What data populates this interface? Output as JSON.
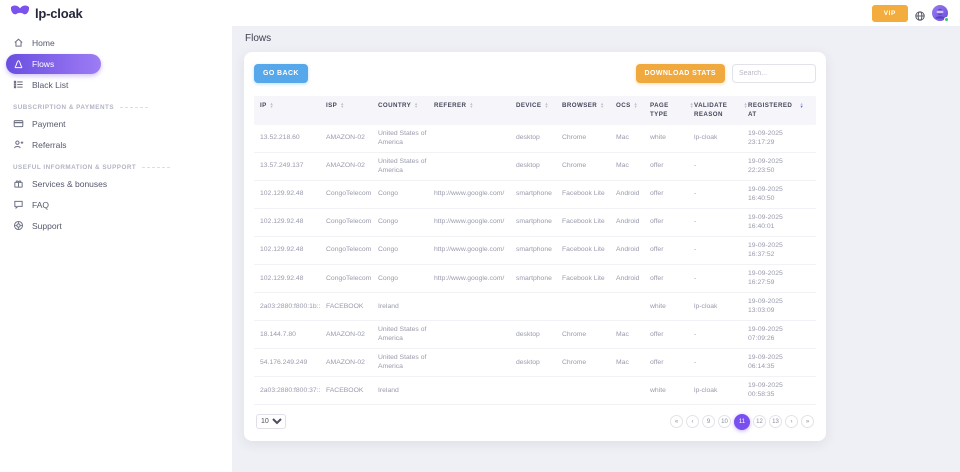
{
  "topbar": {
    "logo_text": "lp-cloak",
    "vip_label": "VIP"
  },
  "sidebar": {
    "sections": [
      {
        "items": [
          {
            "label": "Home"
          },
          {
            "label": "Flows"
          },
          {
            "label": "Black List"
          }
        ]
      },
      {
        "header": "Subscription & Payments",
        "items": [
          {
            "label": "Payment"
          },
          {
            "label": "Referrals"
          }
        ]
      },
      {
        "header": "Useful information & support",
        "items": [
          {
            "label": "Services & bonuses"
          },
          {
            "label": "FAQ"
          },
          {
            "label": "Support"
          }
        ]
      }
    ]
  },
  "main": {
    "page_title": "Flows",
    "toolbar": {
      "go_back_label": "GO BACK",
      "download_stats_label": "DOWNLOAD STATS",
      "search_placeholder": "Search..."
    },
    "table": {
      "columns": [
        "IP",
        "ISP",
        "COUNTRY",
        "REFERER",
        "DEVICE",
        "BROWSER",
        "OCS",
        "PAGE TYPE",
        "VALIDATE REASON",
        "REGISTERED AT"
      ],
      "sorted_column": "REGISTERED AT",
      "rows": [
        {
          "ip": "13.52.218.60",
          "isp": "AMAZON-02",
          "country": "United States of America",
          "referer": "",
          "device": "desktop",
          "browser": "Chrome",
          "ocs": "Mac",
          "page_type": "white",
          "validate_reason": "lp-cloak",
          "registered_date": "19-09-2025",
          "registered_time": "23:17:29"
        },
        {
          "ip": "13.57.249.137",
          "isp": "AMAZON-02",
          "country": "United States of America",
          "referer": "",
          "device": "desktop",
          "browser": "Chrome",
          "ocs": "Mac",
          "page_type": "offer",
          "validate_reason": "-",
          "registered_date": "19-09-2025",
          "registered_time": "22:23:50"
        },
        {
          "ip": "102.129.92.48",
          "isp": "CongoTelecom",
          "country": "Congo",
          "referer": "http://www.google.com/",
          "device": "smartphone",
          "browser": "Facebook Lite",
          "ocs": "Android",
          "page_type": "offer",
          "validate_reason": "-",
          "registered_date": "19-09-2025",
          "registered_time": "16:40:50"
        },
        {
          "ip": "102.129.92.48",
          "isp": "CongoTelecom",
          "country": "Congo",
          "referer": "http://www.google.com/",
          "device": "smartphone",
          "browser": "Facebook Lite",
          "ocs": "Android",
          "page_type": "offer",
          "validate_reason": "-",
          "registered_date": "19-09-2025",
          "registered_time": "16:40:01"
        },
        {
          "ip": "102.129.92.48",
          "isp": "CongoTelecom",
          "country": "Congo",
          "referer": "http://www.google.com/",
          "device": "smartphone",
          "browser": "Facebook Lite",
          "ocs": "Android",
          "page_type": "offer",
          "validate_reason": "-",
          "registered_date": "19-09-2025",
          "registered_time": "16:37:52"
        },
        {
          "ip": "102.129.92.48",
          "isp": "CongoTelecom",
          "country": "Congo",
          "referer": "http://www.google.com/",
          "device": "smartphone",
          "browser": "Facebook Lite",
          "ocs": "Android",
          "page_type": "offer",
          "validate_reason": "-",
          "registered_date": "19-09-2025",
          "registered_time": "16:27:59"
        },
        {
          "ip": "2a03:2880:f800:1b::",
          "isp": "FACEBOOK",
          "country": "Ireland",
          "referer": "",
          "device": "",
          "browser": "",
          "ocs": "",
          "page_type": "white",
          "validate_reason": "lp-cloak",
          "registered_date": "19-09-2025",
          "registered_time": "13:03:09"
        },
        {
          "ip": "18.144.7.80",
          "isp": "AMAZON-02",
          "country": "United States of America",
          "referer": "",
          "device": "desktop",
          "browser": "Chrome",
          "ocs": "Mac",
          "page_type": "offer",
          "validate_reason": "-",
          "registered_date": "19-09-2025",
          "registered_time": "07:09:26"
        },
        {
          "ip": "54.176.249.249",
          "isp": "AMAZON-02",
          "country": "United States of America",
          "referer": "",
          "device": "desktop",
          "browser": "Chrome",
          "ocs": "Mac",
          "page_type": "offer",
          "validate_reason": "-",
          "registered_date": "19-09-2025",
          "registered_time": "06:14:35"
        },
        {
          "ip": "2a03:2880:f800:37::",
          "isp": "FACEBOOK",
          "country": "Ireland",
          "referer": "",
          "device": "",
          "browser": "",
          "ocs": "",
          "page_type": "white",
          "validate_reason": "lp-cloak",
          "registered_date": "19-09-2025",
          "registered_time": "00:58:35"
        }
      ]
    },
    "pagination": {
      "page_size": "10",
      "buttons": [
        {
          "label": "«",
          "name": "first"
        },
        {
          "label": "‹",
          "name": "prev"
        },
        {
          "label": "9"
        },
        {
          "label": "10"
        },
        {
          "label": "11",
          "active": true
        },
        {
          "label": "12"
        },
        {
          "label": "13"
        },
        {
          "label": "›",
          "name": "next"
        },
        {
          "label": "»",
          "name": "last"
        }
      ]
    }
  },
  "colors": {
    "accent_purple": "#7a52e8",
    "pill_gradient_start": "#6a4ee0",
    "pill_gradient_end": "#9d7cf4",
    "vip_orange": "#f2ad3e",
    "go_back_blue": "#57a7eb",
    "download_orange": "#f0a93f",
    "active_page_purple": "#7a4ff0",
    "online_green": "#3fc26a"
  }
}
